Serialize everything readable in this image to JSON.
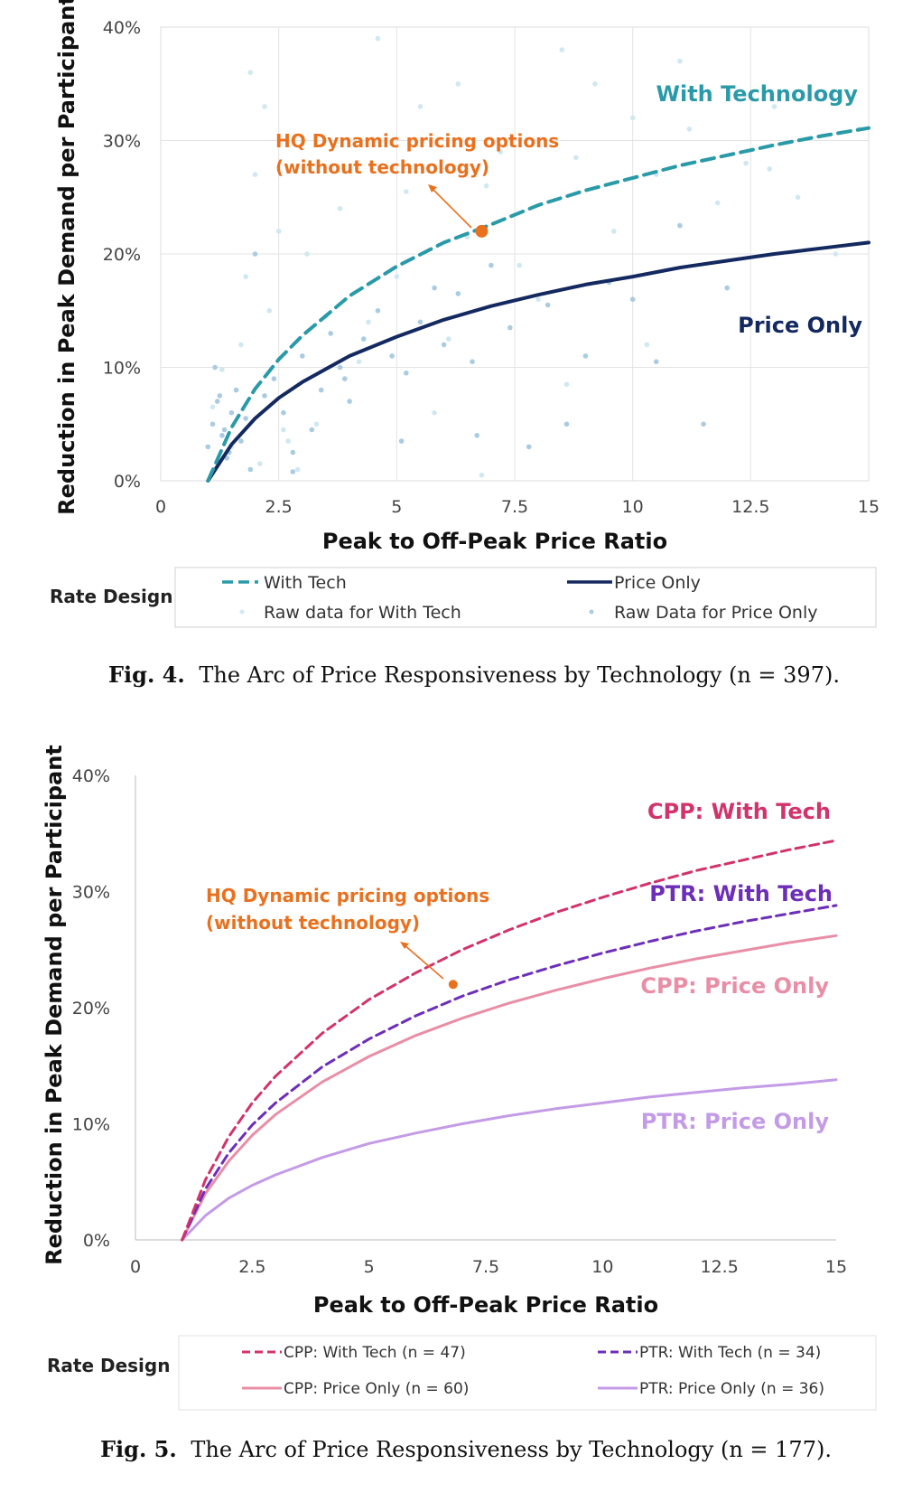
{
  "chart_data": [
    {
      "type": "scatter",
      "xlabel": "Peak to Off-Peak Price Ratio",
      "ylabel": "Reduction in Peak Demand per Participant",
      "xlim": [
        0,
        15
      ],
      "ylim": [
        0,
        40
      ],
      "x_ticks": [
        "0",
        "2.5",
        "5",
        "7.5",
        "10",
        "12.5",
        "15"
      ],
      "y_ticks": [
        "0%",
        "10%",
        "20%",
        "30%",
        "40%"
      ],
      "grid": true,
      "legend_title": "Rate Design",
      "legend_position": "bottom",
      "caption_label": "Fig. 4.",
      "caption_text": "The Arc of Price Responsiveness by Technology (n = 397).",
      "series": [
        {
          "name": "With Tech",
          "kind": "curve",
          "style": "dashed",
          "color": "#2a9aa8",
          "x": [
            1,
            1.5,
            2,
            2.5,
            3,
            4,
            5,
            6,
            7,
            8,
            9,
            10,
            11,
            12,
            13,
            14,
            15
          ],
          "y": [
            0,
            4.7,
            8.1,
            10.7,
            12.8,
            16.3,
            18.9,
            21.0,
            22.6,
            24.3,
            25.6,
            26.7,
            27.8,
            28.7,
            29.6,
            30.4,
            31.1
          ]
        },
        {
          "name": "Price Only",
          "kind": "curve",
          "style": "solid",
          "color": "#13295f",
          "x": [
            1,
            1.5,
            2,
            2.5,
            3,
            4,
            5,
            6,
            7,
            8,
            9,
            10,
            11,
            12,
            13,
            14,
            15
          ],
          "y": [
            0,
            3.2,
            5.5,
            7.3,
            8.7,
            11.0,
            12.7,
            14.2,
            15.4,
            16.4,
            17.3,
            18.0,
            18.8,
            19.4,
            20.0,
            20.5,
            21.0
          ]
        },
        {
          "name": "Raw data for With Tech",
          "kind": "points",
          "color": "#cfe8f1",
          "x": [
            1.1,
            1.3,
            1.5,
            1.7,
            1.9,
            2.0,
            2.2,
            2.3,
            2.5,
            2.7,
            2.9,
            3.1,
            3.5,
            3.8,
            4.2,
            4.6,
            5.0,
            5.2,
            5.5,
            5.8,
            6.1,
            6.3,
            6.5,
            6.8,
            7.2,
            7.6,
            8.0,
            8.5,
            8.8,
            9.2,
            9.6,
            10.0,
            10.5,
            11.2,
            11.8,
            12.4,
            13.0,
            13.5,
            14.3,
            14.8,
            2.1,
            3.3,
            4.4,
            6.9,
            8.6,
            10.3,
            12.9,
            2.6,
            1.8,
            11.0
          ],
          "y": [
            6.5,
            9.8,
            3.0,
            12.0,
            36.0,
            27.0,
            33.0,
            15.0,
            22.0,
            3.5,
            1.0,
            20.0,
            14.5,
            24.0,
            10.5,
            39.0,
            18.0,
            25.5,
            33.0,
            6.0,
            12.5,
            35.0,
            21.5,
            0.5,
            29.0,
            19.0,
            16.0,
            38.0,
            28.5,
            35.0,
            22.0,
            32.0,
            27.0,
            31.0,
            24.5,
            28.0,
            33.0,
            25.0,
            20.0,
            31.0,
            1.5,
            5.0,
            14.0,
            26.0,
            8.5,
            12.0,
            27.5,
            4.5,
            18.0,
            37.0
          ]
        },
        {
          "name": "Raw Data for Price Only",
          "kind": "points",
          "color": "#a9cce3",
          "x": [
            1.0,
            1.1,
            1.2,
            1.3,
            1.4,
            1.5,
            1.6,
            1.7,
            1.8,
            1.9,
            2.0,
            2.2,
            2.4,
            2.6,
            2.8,
            3.0,
            3.2,
            3.4,
            3.6,
            3.8,
            4.0,
            4.3,
            4.6,
            4.9,
            5.2,
            5.5,
            5.8,
            6.0,
            6.3,
            6.6,
            7.0,
            7.4,
            7.8,
            8.2,
            8.6,
            9.0,
            9.5,
            10.0,
            10.5,
            11.0,
            11.5,
            12.0,
            1.15,
            1.35,
            1.45,
            1.25,
            2.8,
            3.9,
            5.1,
            6.7
          ],
          "y": [
            3.0,
            5.0,
            7.0,
            4.0,
            2.0,
            6.0,
            8.0,
            3.5,
            5.5,
            1.0,
            20.0,
            7.5,
            9.0,
            6.0,
            2.5,
            11.0,
            4.5,
            8.0,
            13.0,
            10.0,
            7.0,
            12.5,
            15.0,
            11.0,
            9.5,
            14.0,
            17.0,
            12.0,
            16.5,
            10.5,
            19.0,
            13.5,
            3.0,
            15.5,
            5.0,
            11.0,
            17.5,
            16.0,
            10.5,
            22.5,
            5.0,
            17.0,
            10.0,
            4.5,
            2.5,
            7.5,
            0.8,
            9.0,
            3.5,
            4.0
          ]
        }
      ],
      "annotations": [
        {
          "text": [
            "HQ Dynamic pricing options",
            "(without technology)"
          ],
          "color": "#e8711f",
          "point": [
            6.8,
            22
          ]
        },
        {
          "text": [
            "With Technology"
          ],
          "color": "#2a9aa8"
        },
        {
          "text": [
            "Price Only"
          ],
          "color": "#13295f"
        }
      ]
    },
    {
      "type": "line",
      "xlabel": "Peak to Off-Peak Price Ratio",
      "ylabel": "Reduction in Peak Demand per Participant",
      "xlim": [
        0,
        15
      ],
      "ylim": [
        0,
        40
      ],
      "x_ticks": [
        "0",
        "2.5",
        "5",
        "7.5",
        "10",
        "12.5",
        "15"
      ],
      "y_ticks": [
        "0%",
        "10%",
        "20%",
        "30%",
        "40%"
      ],
      "grid": false,
      "legend_title": "Rate Design",
      "legend_position": "bottom",
      "caption_label": "Fig. 5.",
      "caption_text": "The Arc of Price Responsiveness by Technology (n = 177).",
      "series": [
        {
          "name": "CPP: With Tech (n = 47)",
          "style": "dashed",
          "color": "#d1336b",
          "x": [
            1,
            1.5,
            2,
            2.5,
            3,
            4,
            5,
            6,
            7,
            8,
            9,
            10,
            11,
            12,
            13,
            14,
            15
          ],
          "y": [
            0,
            5.2,
            8.9,
            11.8,
            14.1,
            17.8,
            20.7,
            23.0,
            25.0,
            26.7,
            28.2,
            29.5,
            30.7,
            31.8,
            32.7,
            33.6,
            34.4
          ]
        },
        {
          "name": "PTR: With Tech (n = 34)",
          "style": "dashed",
          "color": "#6d2eb8",
          "x": [
            1,
            1.5,
            2,
            2.5,
            3,
            4,
            5,
            6,
            7,
            8,
            9,
            10,
            11,
            12,
            13,
            14,
            15
          ],
          "y": [
            0,
            4.4,
            7.5,
            9.9,
            11.8,
            14.9,
            17.3,
            19.3,
            21.0,
            22.4,
            23.6,
            24.7,
            25.7,
            26.6,
            27.4,
            28.1,
            28.8
          ]
        },
        {
          "name": "CPP: Price Only (n = 60)",
          "style": "solid",
          "color": "#e88ea6",
          "x": [
            1,
            1.5,
            2,
            2.5,
            3,
            4,
            5,
            6,
            7,
            8,
            9,
            10,
            11,
            12,
            13,
            14,
            15
          ],
          "y": [
            0,
            4.0,
            6.8,
            9.0,
            10.8,
            13.6,
            15.8,
            17.6,
            19.1,
            20.4,
            21.5,
            22.5,
            23.4,
            24.2,
            24.9,
            25.6,
            26.2
          ]
        },
        {
          "name": "PTR: Price Only (n = 36)",
          "style": "solid",
          "color": "#c39be6",
          "x": [
            1,
            1.5,
            2,
            2.5,
            3,
            4,
            5,
            6,
            7,
            8,
            9,
            10,
            11,
            12,
            13,
            14,
            15
          ],
          "y": [
            0,
            2.1,
            3.6,
            4.7,
            5.6,
            7.1,
            8.3,
            9.2,
            10.0,
            10.7,
            11.3,
            11.8,
            12.3,
            12.7,
            13.1,
            13.4,
            13.8
          ]
        }
      ],
      "annotations": [
        {
          "text": [
            "HQ Dynamic pricing options",
            "(without technology)"
          ],
          "color": "#e8711f",
          "point": [
            6.8,
            22
          ]
        },
        {
          "text": [
            "CPP: With Tech"
          ],
          "color": "#d1336b"
        },
        {
          "text": [
            "PTR: With Tech"
          ],
          "color": "#6d2eb8"
        },
        {
          "text": [
            "CPP: Price Only"
          ],
          "color": "#e88ea6"
        },
        {
          "text": [
            "PTR: Price Only"
          ],
          "color": "#c39be6"
        }
      ]
    }
  ]
}
